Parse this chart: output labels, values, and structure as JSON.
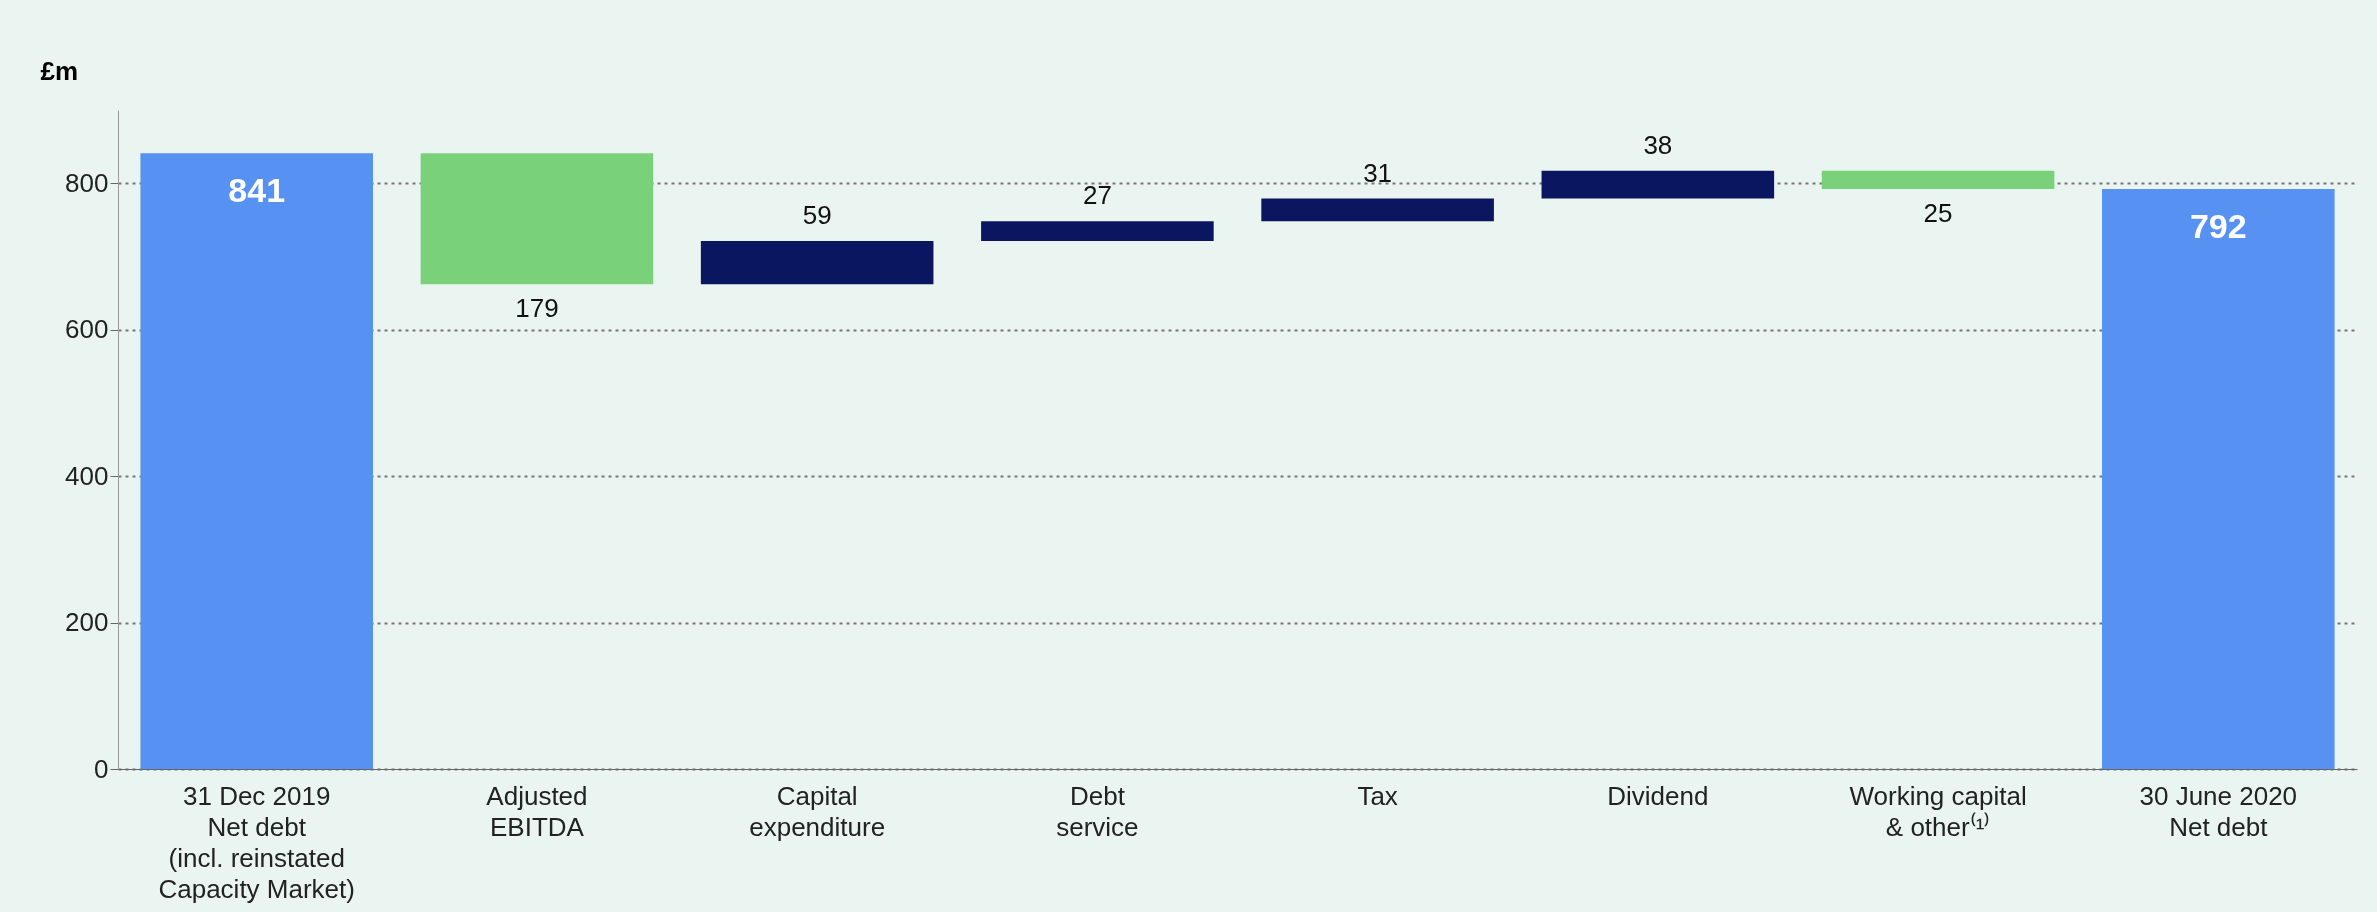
{
  "chart_data": {
    "type": "bar",
    "ylabel": "£m",
    "categories": [
      "31 Dec 2019\nNet debt\n(incl. reinstated\nCapacity Market)",
      "Adjusted\nEBITDA",
      "Capital\nexpenditure",
      "Debt\nservice",
      "Tax",
      "Dividend",
      "Working capital\n& other⁽¹⁾",
      "30 June 2020\nNet debt"
    ],
    "base": [
      0,
      841,
      662,
      721,
      748,
      779,
      817,
      0
    ],
    "values": [
      841,
      -179,
      59,
      27,
      31,
      38,
      -25,
      792
    ],
    "value_labels": [
      "841",
      "179",
      "59",
      "27",
      "31",
      "38",
      "25",
      "792"
    ],
    "colors": [
      "#5791f2",
      "#79d279",
      "#0b1660",
      "#0b1660",
      "#0b1660",
      "#0b1660",
      "#79d279",
      "#5791f2"
    ],
    "ylim": [
      0,
      900
    ],
    "yticks": [
      0,
      200,
      400,
      600,
      800
    ],
    "grid": "y"
  }
}
